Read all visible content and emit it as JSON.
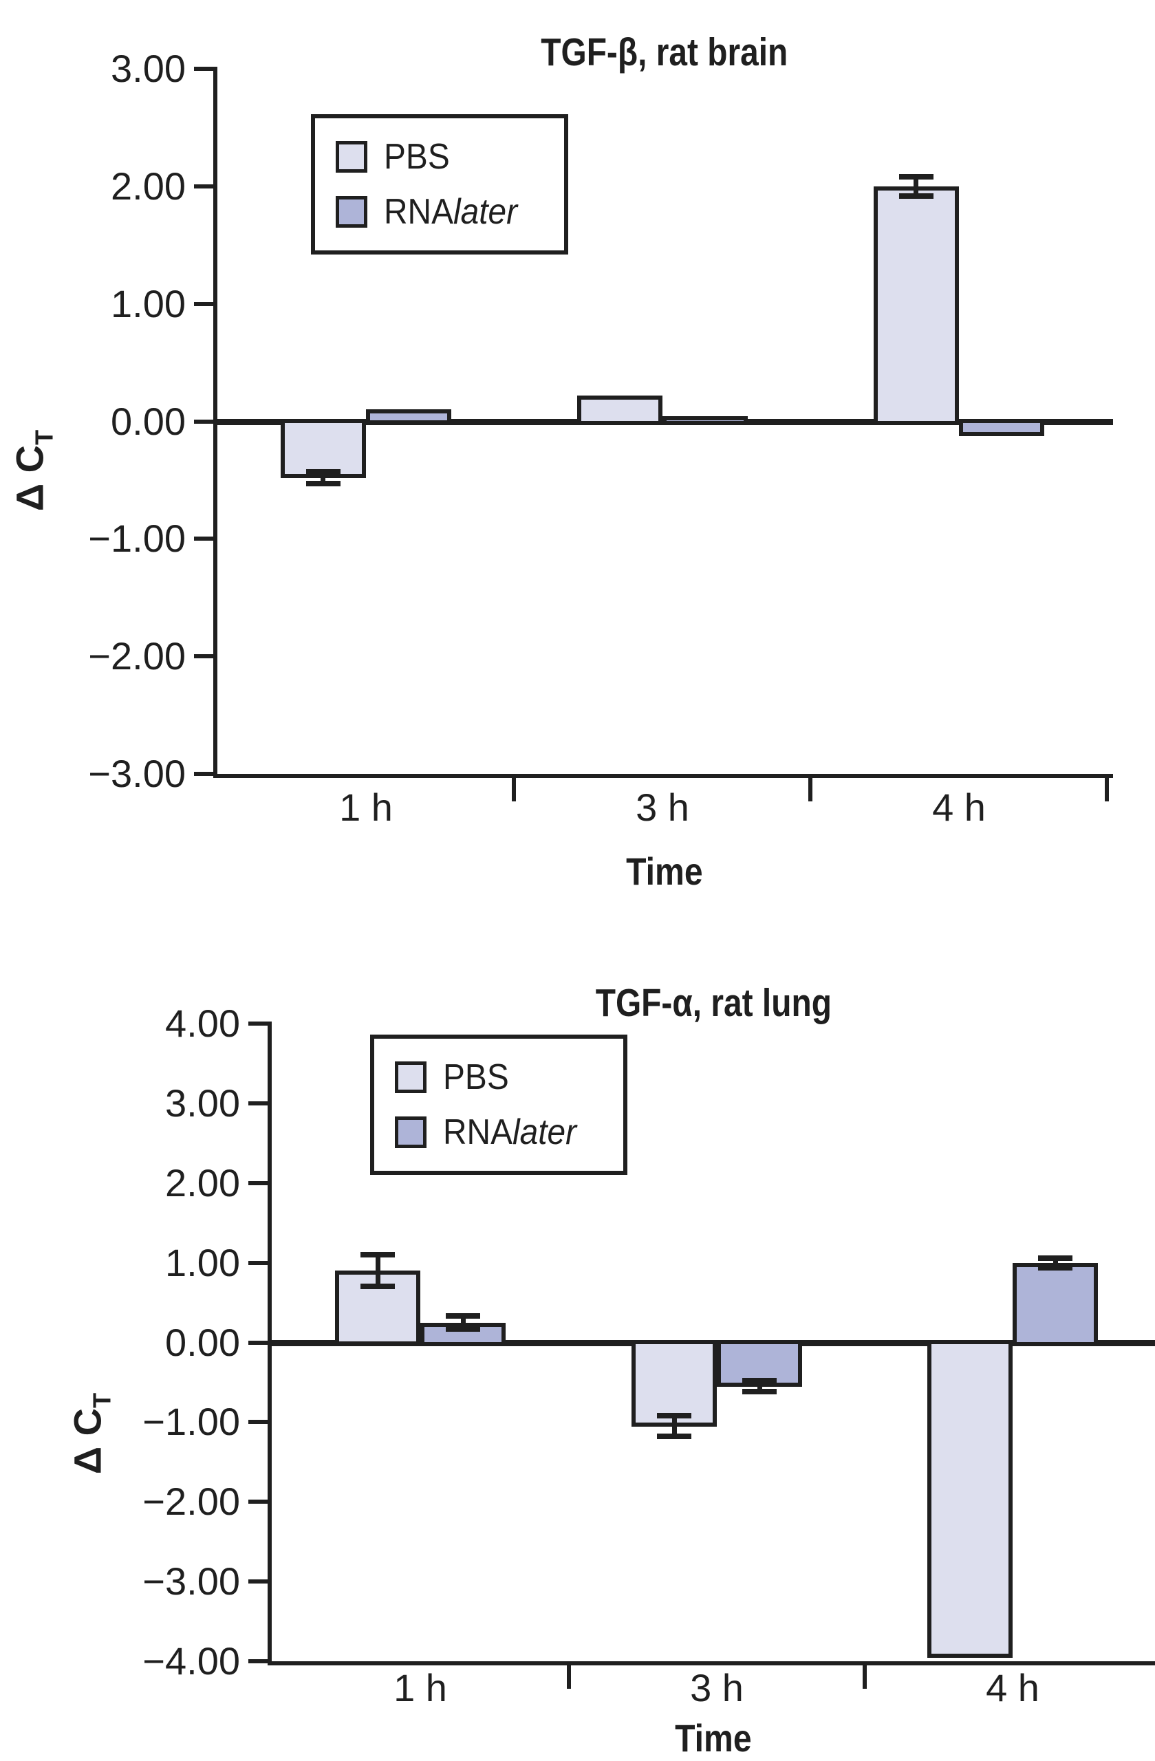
{
  "figure": {
    "background": "#ffffff",
    "axis_color": "#1f1f1f",
    "pbs_color": "#dddfee",
    "rnalater_color": "#aeb4d8"
  },
  "chart_data": [
    {
      "type": "bar",
      "title": "TGF-β, rat brain",
      "xlabel": "Time",
      "ylabel": {
        "text": "Δ C",
        "sub": "T"
      },
      "categories": [
        "1 h",
        "3 h",
        "4 h"
      ],
      "ylim": [
        -3,
        3
      ],
      "ytick_values": [
        3,
        2,
        1,
        0,
        -1,
        -2,
        -3
      ],
      "ytick_labels": [
        "3.00",
        "2.00",
        "1.00",
        "0.00",
        "−1.00",
        "−2.00",
        "−3.00"
      ],
      "grid": false,
      "legend_position": "upper-left-inside",
      "legend_items": [
        {
          "label": "PBS",
          "label_italic": "",
          "color": "#dddfee"
        },
        {
          "label": "RNA",
          "label_italic": "later",
          "color": "#aeb4d8"
        }
      ],
      "series": [
        {
          "name": "PBS",
          "color": "#dddfee",
          "values": [
            -0.48,
            0.22,
            2.0
          ],
          "errors": [
            0.05,
            null,
            0.08
          ]
        },
        {
          "name": "RNAlater",
          "color": "#aeb4d8",
          "values": [
            0.1,
            0.02,
            -0.12
          ],
          "errors": [
            null,
            null,
            null
          ]
        }
      ]
    },
    {
      "type": "bar",
      "title": "TGF-α, rat lung",
      "xlabel": "Time",
      "ylabel": {
        "text": "Δ C",
        "sub": "T"
      },
      "categories": [
        "1 h",
        "3 h",
        "4 h"
      ],
      "ylim": [
        -4,
        4
      ],
      "ytick_values": [
        4,
        3,
        2,
        1,
        0,
        -1,
        -2,
        -3,
        -4
      ],
      "ytick_labels": [
        "4.00",
        "3.00",
        "2.00",
        "1.00",
        "0.00",
        "−1.00",
        "−2.00",
        "−3.00",
        "−4.00"
      ],
      "grid": false,
      "legend_position": "upper-left-inside",
      "legend_items": [
        {
          "label": "PBS",
          "label_italic": "",
          "color": "#dddfee"
        },
        {
          "label": "RNA",
          "label_italic": "later",
          "color": "#aeb4d8"
        }
      ],
      "series": [
        {
          "name": "PBS",
          "color": "#dddfee",
          "values": [
            0.9,
            -1.05,
            -3.95
          ],
          "errors": [
            0.2,
            0.13,
            null
          ]
        },
        {
          "name": "RNAlater",
          "color": "#aeb4d8",
          "values": [
            0.25,
            -0.55,
            1.0
          ],
          "errors": [
            0.08,
            0.07,
            0.06
          ]
        }
      ]
    }
  ]
}
